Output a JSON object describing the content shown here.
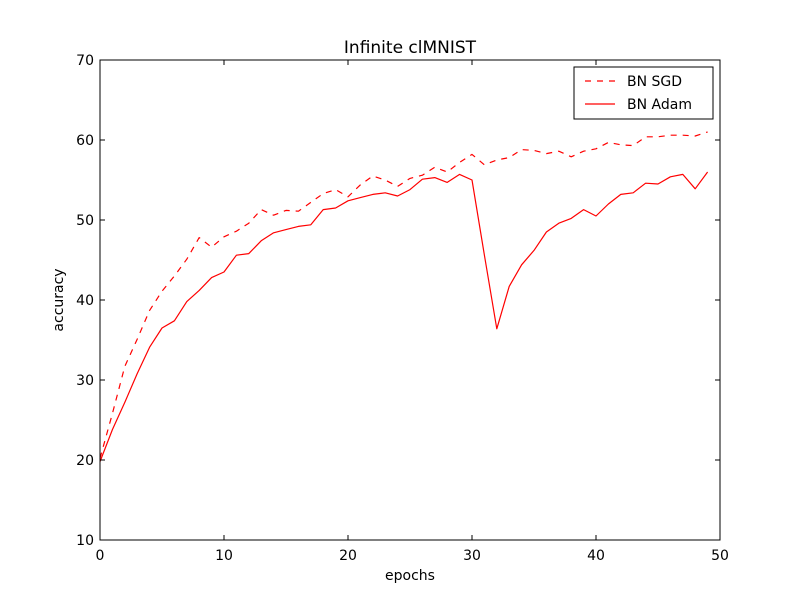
{
  "chart_data": {
    "type": "line",
    "title": "Infinite clMNIST",
    "xlabel": "epochs",
    "ylabel": "accuracy",
    "xlim": [
      0,
      50
    ],
    "ylim": [
      10,
      70
    ],
    "xticks": [
      0,
      10,
      20,
      30,
      40,
      50
    ],
    "yticks": [
      10,
      20,
      30,
      40,
      50,
      60,
      70
    ],
    "grid": false,
    "legend_position": "top-right",
    "x": [
      0,
      1,
      2,
      3,
      4,
      5,
      6,
      7,
      8,
      9,
      10,
      11,
      12,
      13,
      14,
      15,
      16,
      17,
      18,
      19,
      20,
      21,
      22,
      23,
      24,
      25,
      26,
      27,
      28,
      29,
      30,
      31,
      32,
      33,
      34,
      35,
      36,
      37,
      38,
      39,
      40,
      41,
      42,
      43,
      44,
      45,
      46,
      47,
      48,
      49
    ],
    "series": [
      {
        "name": "BN SGD",
        "color": "#ff0000",
        "style": "dashed",
        "values": [
          20.2,
          25.8,
          31.7,
          35.1,
          38.7,
          41.1,
          43.0,
          45.1,
          47.8,
          46.6,
          47.9,
          48.6,
          49.6,
          51.3,
          50.6,
          51.2,
          51.1,
          52.2,
          53.3,
          53.8,
          52.9,
          54.4,
          55.5,
          55.0,
          54.2,
          55.2,
          55.6,
          56.6,
          56.0,
          57.2,
          58.2,
          56.9,
          57.5,
          57.8,
          58.8,
          58.7,
          58.3,
          58.6,
          57.9,
          58.6,
          58.9,
          59.7,
          59.4,
          59.3,
          60.4,
          60.4,
          60.6,
          60.6,
          60.5,
          61.0
        ]
      },
      {
        "name": "BN Adam",
        "color": "#ff0000",
        "style": "solid",
        "values": [
          19.8,
          23.8,
          27.2,
          30.8,
          34.1,
          36.5,
          37.4,
          39.8,
          41.2,
          42.8,
          43.5,
          45.6,
          45.8,
          47.4,
          48.4,
          48.8,
          49.2,
          49.4,
          51.3,
          51.5,
          52.4,
          52.8,
          53.2,
          53.4,
          53.0,
          53.8,
          55.1,
          55.3,
          54.7,
          55.7,
          55.0,
          45.6,
          36.4,
          41.7,
          44.4,
          46.2,
          48.5,
          49.6,
          50.2,
          51.3,
          50.5,
          52.0,
          53.2,
          53.4,
          54.6,
          54.5,
          55.4,
          55.7,
          53.9,
          56.0
        ]
      }
    ]
  }
}
